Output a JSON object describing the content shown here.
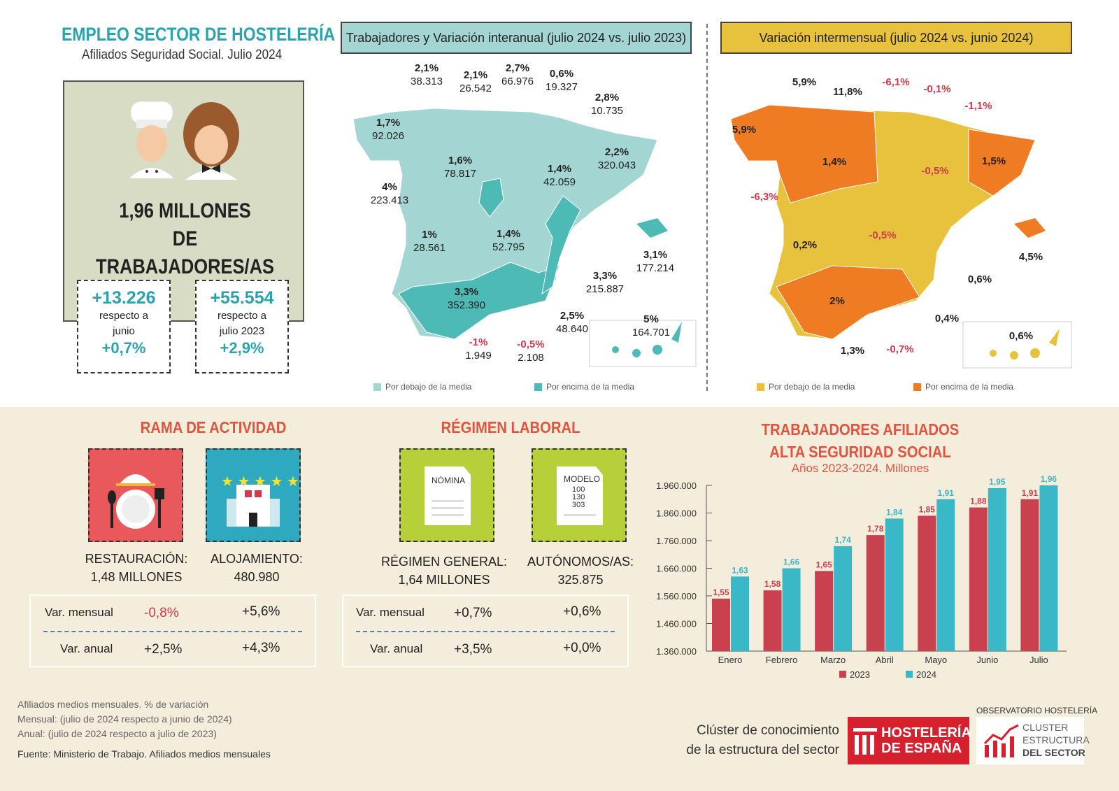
{
  "header": {
    "title": "EMPLEO SECTOR DE HOSTELERÍA",
    "subtitle": "Afiliados Seguridad Social. Julio 2024"
  },
  "hero": {
    "total_line1": "1,96 MILLONES",
    "total_line2": "DE TRABAJADORES/AS",
    "kpi_month": {
      "value": "+13.226",
      "label1": "respecto a",
      "label2": "junio",
      "pct": "+0,7%"
    },
    "kpi_year": {
      "value": "+55.554",
      "label1": "respecto a",
      "label2": "julio 2023",
      "pct": "+2,9%"
    }
  },
  "map_annual": {
    "title": "Trabajadores y Variación interanual (julio 2024 vs. julio 2023)",
    "colors": {
      "below": "#a3d6d3",
      "above": "#4dbab5"
    },
    "legend_below": "Por debajo de la media",
    "legend_above": "Por encima de la media",
    "regions": [
      {
        "pct": "1,7%",
        "value": "92.026"
      },
      {
        "pct": "2,1%",
        "value": "38.313"
      },
      {
        "pct": "2,1%",
        "value": "26.542"
      },
      {
        "pct": "2,7%",
        "value": "66.976"
      },
      {
        "pct": "0,6%",
        "value": "19.327"
      },
      {
        "pct": "2,8%",
        "value": "10.735"
      },
      {
        "pct": "1,6%",
        "value": "78.817"
      },
      {
        "pct": "4%",
        "value": "223.413"
      },
      {
        "pct": "1,4%",
        "value": "42.059"
      },
      {
        "pct": "2,2%",
        "value": "320.043"
      },
      {
        "pct": "1%",
        "value": "28.561"
      },
      {
        "pct": "1,4%",
        "value": "52.795"
      },
      {
        "pct": "3,3%",
        "value": "215.887"
      },
      {
        "pct": "3,1%",
        "value": "177.214"
      },
      {
        "pct": "3,3%",
        "value": "352.390"
      },
      {
        "pct": "2,5%",
        "value": "48.640"
      },
      {
        "pct": "5%",
        "value": "164.701"
      },
      {
        "pct": "-1%",
        "value": "1.949"
      },
      {
        "pct": "-0,5%",
        "value": "2.108"
      }
    ]
  },
  "map_monthly": {
    "title": "Variación intermensual (julio 2024 vs. junio 2024)",
    "colors": {
      "below": "#e8c23c",
      "above": "#ef7b22"
    },
    "legend_below": "Por debajo de la media",
    "legend_above": "Por encima de la media",
    "regions": [
      "5,9%",
      "11,8%",
      "-6,1%",
      "-0,1%",
      "-1,1%",
      "5,9%",
      "1,4%",
      "-0,5%",
      "1,5%",
      "-6,3%",
      "0,2%",
      "-0,5%",
      "0,6%",
      "4,5%",
      "2%",
      "0,4%",
      "1,3%",
      "-0,7%",
      "0,6%"
    ]
  },
  "rama": {
    "title": "RAMA DE ACTIVIDAD",
    "items": [
      {
        "label1": "RESTAURACIÓN:",
        "label2": "1,48 MILLONES",
        "icon": "restaurant-icon",
        "color": "#e9595c"
      },
      {
        "label1": "ALOJAMIENTO:",
        "label2": "480.980",
        "icon": "hotel-icon",
        "color": "#2fa9c0"
      }
    ],
    "table": {
      "row1": "Var. mensual",
      "row2": "Var. anual",
      "a1": "-0,8%",
      "b1": "+5,6%",
      "a2": "+2,5%",
      "b2": "+4,3%"
    }
  },
  "regimen": {
    "title": "RÉGIMEN LABORAL",
    "items": [
      {
        "label1": "RÉGIMEN GENERAL:",
        "label2": "1,64 MILLONES",
        "doc": "NÓMINA",
        "icon": "payroll-document-icon"
      },
      {
        "label1": "AUTÓNOMOS/AS:",
        "label2": "325.875",
        "doc": "MODELO",
        "doc2": "100",
        "doc3": "130",
        "doc4": "303",
        "icon": "tax-form-document-icon"
      }
    ],
    "table": {
      "row1": "Var. mensual",
      "row2": "Var. anual",
      "a1": "+0,7%",
      "b1": "+0,6%",
      "a2": "+3,5%",
      "b2": "+0,0%"
    }
  },
  "chart_data": {
    "type": "bar",
    "title": "TRABAJADORES AFILIADOS ALTA SEGURIDAD SOCIAL",
    "title1": "TRABAJADORES AFILIADOS",
    "title2": "ALTA SEGURIDAD SOCIAL",
    "subtitle": "Años 2023-2024. Millones",
    "categories": [
      "Enero",
      "Febrero",
      "Marzo",
      "Abril",
      "Mayo",
      "Junio",
      "Julio"
    ],
    "series": [
      {
        "name": "2023",
        "color": "#c9404e",
        "values": [
          1.55,
          1.58,
          1.65,
          1.78,
          1.85,
          1.88,
          1.91
        ],
        "labels": [
          "1,55",
          "1,58",
          "1,65",
          "1,78",
          "1,85",
          "1,88",
          "1,91"
        ]
      },
      {
        "name": "2024",
        "color": "#3bb8c8",
        "values": [
          1.63,
          1.66,
          1.74,
          1.84,
          1.91,
          1.95,
          1.96
        ],
        "labels": [
          "1,63",
          "1,66",
          "1,74",
          "1,84",
          "1,91",
          "1,95",
          "1,96"
        ]
      }
    ],
    "yticks": [
      "1.360.000",
      "1.460.000",
      "1.560.000",
      "1.660.000",
      "1.760.000",
      "1.860.000",
      "1.960.000"
    ],
    "ylim": [
      1360000,
      1960000
    ],
    "legend": "bottom",
    "grid": false
  },
  "footer": {
    "note1": "Afiliados medios mensuales. % de variación",
    "note2": "Mensual: (julio de 2024 respecto a junio de 2024)",
    "note3": "Anual: (julio de 2024 respecto a julio de 2023)",
    "source": "Fuente: Ministerio de Trabajo. Afiliados medios mensuales",
    "cluster_line1": "Clúster de conocimiento",
    "cluster_line2": "de la estructura del sector",
    "logo1_line1": "HOSTELERÍA",
    "logo1_line2": "DE ESPAÑA",
    "observatorio": "OBSERVATORIO HOSTELERÍA",
    "logo2_line1": "CLUSTER",
    "logo2_line2": "ESTRUCTURA",
    "logo2_line3": "DEL SECTOR"
  }
}
